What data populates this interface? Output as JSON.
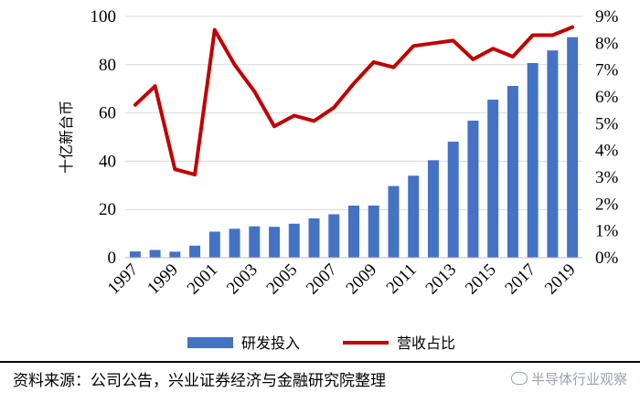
{
  "chart_data": {
    "type": "bar+line",
    "ylabel": "十亿新台币",
    "x": [
      "1997",
      "1998",
      "1999",
      "2000",
      "2001",
      "2002",
      "2003",
      "2004",
      "2005",
      "2006",
      "2007",
      "2008",
      "2009",
      "2010",
      "2011",
      "2012",
      "2013",
      "2014",
      "2015",
      "2016",
      "2017",
      "2018",
      "2019"
    ],
    "x_tick_labels": [
      "1997",
      "1999",
      "2001",
      "2003",
      "2005",
      "2007",
      "2009",
      "2011",
      "2013",
      "2015",
      "2017",
      "2019"
    ],
    "y_left_ticks": [
      "0",
      "20",
      "40",
      "60",
      "80",
      "100"
    ],
    "y_right_ticks": [
      "0%",
      "1%",
      "2%",
      "3%",
      "4%",
      "5%",
      "6%",
      "7%",
      "8%",
      "9%"
    ],
    "ylim_left": [
      0,
      100
    ],
    "ylim_right": [
      0,
      9
    ],
    "series": [
      {
        "name": "研发投入",
        "type": "bar",
        "axis": "left",
        "color": "#4472c4",
        "values": [
          2.6,
          3.2,
          2.5,
          5.0,
          10.8,
          12.0,
          13.0,
          12.8,
          14.1,
          16.3,
          18.0,
          21.6,
          21.6,
          29.7,
          34.0,
          40.4,
          48.1,
          56.8,
          65.5,
          71.2,
          80.7,
          85.9,
          91.4
        ]
      },
      {
        "name": "营收占比",
        "type": "line",
        "axis": "right",
        "color": "#c00000",
        "values": [
          5.7,
          6.4,
          3.3,
          3.1,
          8.5,
          7.2,
          6.2,
          4.9,
          5.3,
          5.1,
          5.6,
          6.5,
          7.3,
          7.1,
          7.9,
          8.0,
          8.1,
          7.4,
          7.8,
          7.5,
          8.3,
          8.3,
          8.6
        ]
      }
    ],
    "grid": true,
    "legend": "bottom"
  },
  "footer": {
    "source": "资料来源：公司公告，兴业证券经济与金融研究院整理",
    "watermark": "半导体行业观察"
  }
}
